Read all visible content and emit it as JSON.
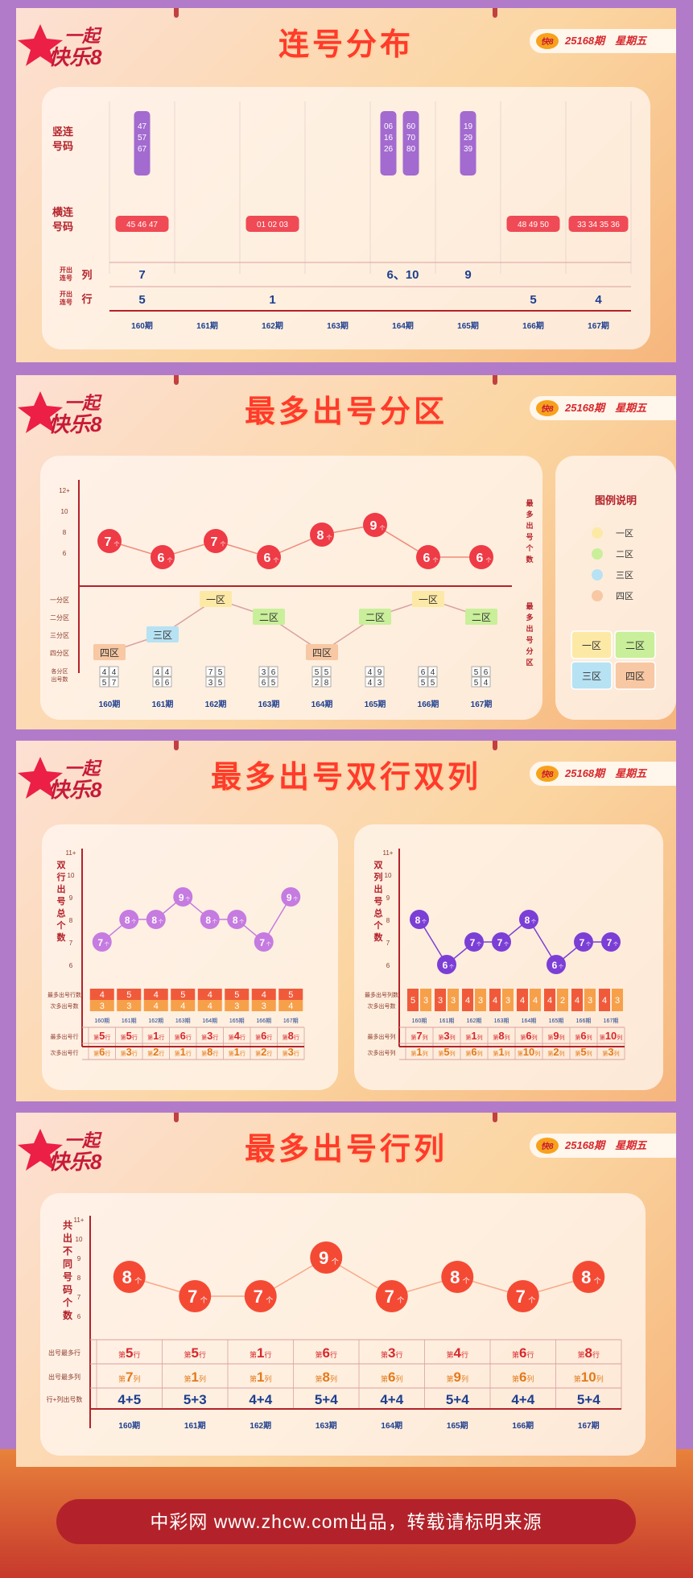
{
  "brand": "一起快乐8",
  "issue_text": "25168期　星期五",
  "periods": [
    "160期",
    "161期",
    "162期",
    "163期",
    "164期",
    "165期",
    "166期",
    "167期"
  ],
  "section1": {
    "title": "连号分布",
    "row_vertical": "竖连号码",
    "row_horizontal": "横连号码",
    "row_col": "开出连号列",
    "row_row": "开出连号行",
    "vertical": [
      [
        "47",
        "57",
        "67"
      ],
      null,
      null,
      null,
      [
        [
          "06",
          "16",
          "26"
        ],
        [
          "60",
          "70",
          "80"
        ]
      ],
      [
        "19",
        "29",
        "39"
      ],
      null,
      null
    ],
    "horizontal": [
      "45 46 47",
      "",
      "01 02 03",
      "",
      "",
      "",
      "48 49 50",
      "33 34 35 36"
    ],
    "col_values": [
      "7",
      "",
      "",
      "",
      "6、10",
      "9",
      "",
      ""
    ],
    "row_values": [
      "5",
      "",
      "1",
      "",
      "",
      "",
      "5",
      "4"
    ]
  },
  "section2": {
    "title": "最多出号分区",
    "yaxis_count": [
      "12+",
      "10",
      "8",
      "6"
    ],
    "right_label_1": "最多出号个数",
    "right_label_2": "最多出号分区",
    "counts": [
      7,
      6,
      7,
      6,
      8,
      9,
      6,
      6
    ],
    "zones": [
      "四区",
      "三区",
      "一区",
      "二区",
      "四区",
      "二区",
      "一区",
      "二区"
    ],
    "zone_levels": [
      "一分区",
      "二分区",
      "三分区",
      "四分区"
    ],
    "zone_row_label": "各分区出号数",
    "zone_counts": [
      [
        "4",
        "4",
        "5",
        "7"
      ],
      [
        "4",
        "4",
        "6",
        "6"
      ],
      [
        "7",
        "5",
        "3",
        "5"
      ],
      [
        "3",
        "6",
        "6",
        "5"
      ],
      [
        "5",
        "5",
        "2",
        "8"
      ],
      [
        "4",
        "9",
        "4",
        "3"
      ],
      [
        "6",
        "4",
        "5",
        "5"
      ],
      [
        "5",
        "6",
        "5",
        "4"
      ]
    ],
    "legend_title": "图例说明",
    "legend": [
      "一区",
      "二区",
      "三区",
      "四区"
    ],
    "colors": {
      "zone1": "#fde9a6",
      "zone2": "#c9ef9a",
      "zone3": "#b7e2f3",
      "zone4": "#f7c8a3"
    }
  },
  "section3": {
    "title": "最多出号双行双列",
    "left": {
      "ylabel": "双行出号总个数",
      "yaxis": [
        "11+",
        "10",
        "9",
        "8",
        "7",
        "6"
      ],
      "counts": [
        7,
        8,
        8,
        9,
        8,
        8,
        7,
        9
      ],
      "label_most": "最多出号行数",
      "label_second": "次多出号数",
      "most_nums": [
        "4",
        "5",
        "4",
        "5",
        "4",
        "5",
        "4",
        "5"
      ],
      "second_nums": [
        "3",
        "3",
        "4",
        "4",
        "4",
        "3",
        "3",
        "4"
      ],
      "row1_label": "最多出号行",
      "row2_label": "次多出号行",
      "row1": [
        "5",
        "5",
        "1",
        "6",
        "3",
        "4",
        "6",
        "8"
      ],
      "row2": [
        "6",
        "3",
        "2",
        "1",
        "8",
        "1",
        "2",
        "3"
      ],
      "unit": "行"
    },
    "right": {
      "ylabel": "双列出号总个数",
      "yaxis": [
        "11+",
        "10",
        "9",
        "8",
        "7",
        "6"
      ],
      "counts": [
        8,
        6,
        7,
        7,
        8,
        6,
        7,
        7
      ],
      "label_most": "最多出号列数",
      "label_second": "次多出号数",
      "pairs": [
        [
          "5",
          "3"
        ],
        [
          "3",
          "3"
        ],
        [
          "4",
          "3"
        ],
        [
          "4",
          "3"
        ],
        [
          "4",
          "4"
        ],
        [
          "4",
          "2"
        ],
        [
          "4",
          "3"
        ],
        [
          "4",
          "3"
        ]
      ],
      "row1_label": "最多出号列",
      "row2_label": "次多出号列",
      "row1": [
        "7",
        "3",
        "1",
        "8",
        "6",
        "9",
        "6",
        "10"
      ],
      "row2": [
        "1",
        "5",
        "6",
        "1",
        "10",
        "2",
        "5",
        "3"
      ],
      "unit": "列"
    }
  },
  "section4": {
    "title": "最多出号行列",
    "ylabel": "共出不同号码个数",
    "yaxis": [
      "11+",
      "10",
      "9",
      "8",
      "7",
      "6"
    ],
    "counts": [
      8,
      7,
      7,
      9,
      7,
      8,
      7,
      8
    ],
    "label_row": "出号最多行",
    "label_col": "出号最多列",
    "label_sum": "行+列出号数",
    "rows": [
      "5",
      "5",
      "1",
      "6",
      "3",
      "4",
      "6",
      "8"
    ],
    "cols": [
      "7",
      "1",
      "1",
      "8",
      "6",
      "9",
      "6",
      "10"
    ],
    "sums": [
      "4+5",
      "5+3",
      "4+4",
      "5+4",
      "4+4",
      "5+4",
      "4+4",
      "5+4"
    ]
  },
  "footer": "中彩网 www.zhcw.com出品，转载请标明来源"
}
